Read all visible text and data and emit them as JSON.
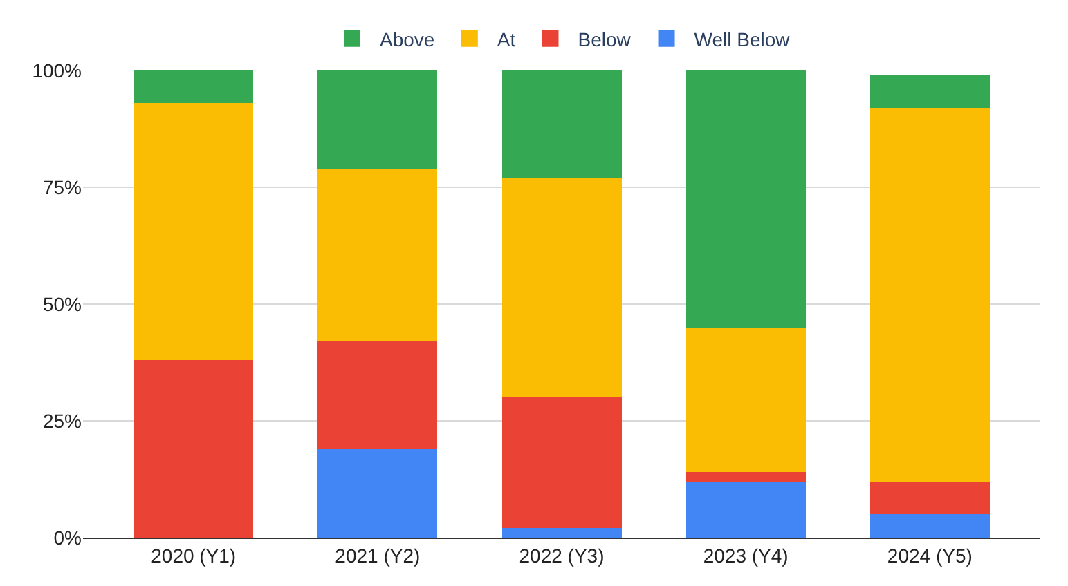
{
  "chart_data": {
    "type": "bar",
    "stacked": true,
    "categories": [
      "2020 (Y1)",
      "2021 (Y2)",
      "2022 (Y3)",
      "2023 (Y4)",
      "2024 (Y5)"
    ],
    "series": [
      {
        "name": "Well Below",
        "color": "#4285f4",
        "values": [
          0,
          19,
          2,
          12,
          5
        ]
      },
      {
        "name": "Below",
        "color": "#ea4335",
        "values": [
          38,
          23,
          28,
          2,
          7
        ]
      },
      {
        "name": "At",
        "color": "#fbbc04",
        "values": [
          55,
          37,
          47,
          31,
          80
        ]
      },
      {
        "name": "Above",
        "color": "#34a853",
        "values": [
          7,
          21,
          23,
          55,
          7
        ]
      }
    ],
    "ylim": [
      0,
      100
    ],
    "yticks": [
      {
        "value": 0,
        "label": "0%"
      },
      {
        "value": 25,
        "label": "25%"
      },
      {
        "value": 50,
        "label": "50%"
      },
      {
        "value": 75,
        "label": "75%"
      },
      {
        "value": 100,
        "label": "100%"
      }
    ],
    "grid": "y",
    "legend": "top"
  }
}
